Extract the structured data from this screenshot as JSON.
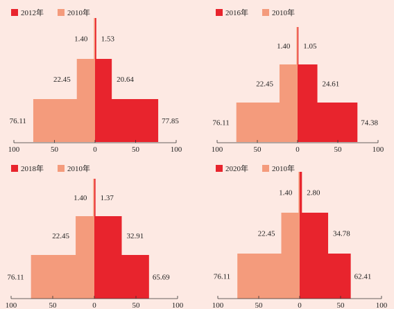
{
  "colors": {
    "primary": "#e8242d",
    "baseline": "#f49b7c",
    "background": "#fde9e3"
  },
  "chart_data": [
    {
      "type": "bar",
      "orientation": "horizontal-pyramid",
      "legend": "top-left",
      "xlim": [
        -100,
        100
      ],
      "xticks": [
        "100",
        "50",
        "0",
        "50",
        "100"
      ],
      "series": [
        {
          "name": "2012年",
          "side": "right",
          "values": [
            77.85,
            20.64,
            1.53
          ]
        },
        {
          "name": "2010年",
          "side": "left",
          "values": [
            76.11,
            22.45,
            1.4
          ]
        }
      ],
      "labels_right": [
        "77.85",
        "20.64",
        "1.53"
      ],
      "labels_left": [
        "76.11",
        "22.45",
        "1.40"
      ]
    },
    {
      "type": "bar",
      "orientation": "horizontal-pyramid",
      "legend": "top-left",
      "xlim": [
        -100,
        100
      ],
      "xticks": [
        "100",
        "50",
        "0",
        "50",
        "100"
      ],
      "series": [
        {
          "name": "2016年",
          "side": "right",
          "values": [
            74.38,
            24.61,
            1.05
          ]
        },
        {
          "name": "2010年",
          "side": "left",
          "values": [
            76.11,
            22.45,
            1.4
          ]
        }
      ],
      "labels_right": [
        "74.38",
        "24.61",
        "1.05"
      ],
      "labels_left": [
        "76.11",
        "22.45",
        "1.40"
      ]
    },
    {
      "type": "bar",
      "orientation": "horizontal-pyramid",
      "legend": "top-left",
      "xlim": [
        -100,
        100
      ],
      "xticks": [
        "100",
        "50",
        "0",
        "50",
        "100"
      ],
      "series": [
        {
          "name": "2018年",
          "side": "right",
          "values": [
            65.69,
            32.91,
            1.37
          ]
        },
        {
          "name": "2010年",
          "side": "left",
          "values": [
            76.11,
            22.45,
            1.4
          ]
        }
      ],
      "labels_right": [
        "65.69",
        "32.91",
        "1.37"
      ],
      "labels_left": [
        "76.11",
        "22.45",
        "1.40"
      ]
    },
    {
      "type": "bar",
      "orientation": "horizontal-pyramid",
      "legend": "top-left",
      "xlim": [
        -100,
        100
      ],
      "xticks": [
        "100",
        "50",
        "0",
        "50",
        "100"
      ],
      "series": [
        {
          "name": "2020年",
          "side": "right",
          "values": [
            62.41,
            34.78,
            2.8
          ]
        },
        {
          "name": "2010年",
          "side": "left",
          "values": [
            76.11,
            22.45,
            1.4
          ]
        }
      ],
      "labels_right": [
        "62.41",
        "34.78",
        "2.80"
      ],
      "labels_left": [
        "76.11",
        "22.45",
        "1.40"
      ]
    }
  ]
}
